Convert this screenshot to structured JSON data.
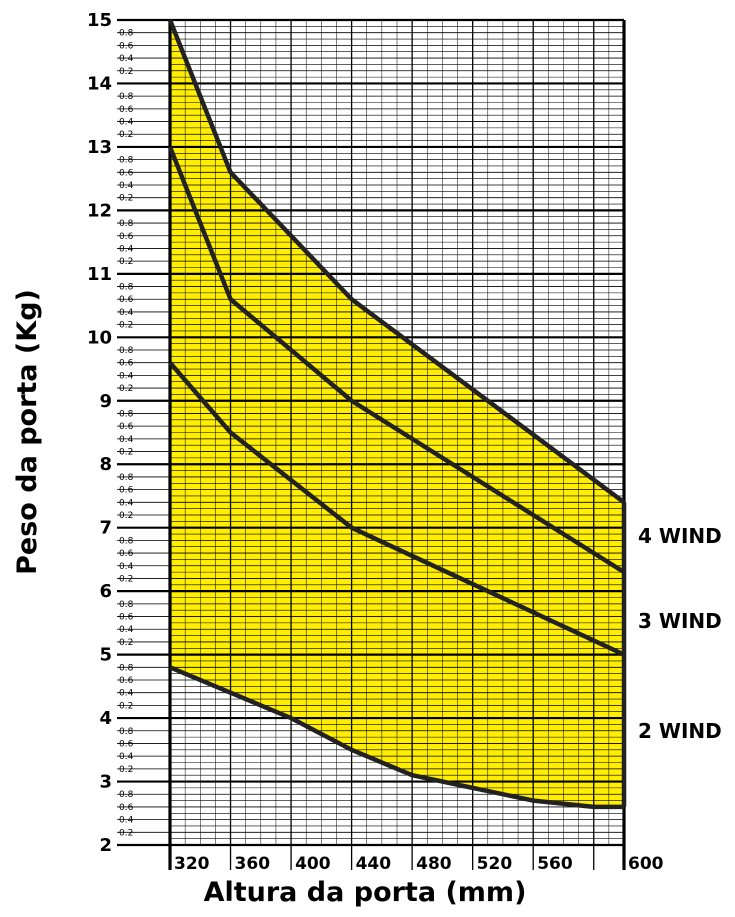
{
  "chart_data": {
    "type": "area",
    "xlabel": "Altura da porta (mm)",
    "ylabel": "Peso da porta (Kg)",
    "xlim": [
      300,
      600
    ],
    "ylim": [
      2,
      15
    ],
    "x_ticks": [
      "320",
      "360",
      "400",
      "440",
      "480",
      "520",
      "560",
      "600"
    ],
    "y_major_ticks": [
      "2",
      "3",
      "4",
      "5",
      "6",
      "7",
      "8",
      "9",
      "10",
      "11",
      "12",
      "13",
      "14",
      "15"
    ],
    "y_minor_ticks": [
      "0.2",
      "0.4",
      "0.6",
      "0.8"
    ],
    "fill_color": "#ffee00",
    "line_color": "#222222",
    "series": [
      {
        "name": "4 WIND",
        "x": [
          300,
          340,
          420,
          600
        ],
        "y": [
          15.0,
          12.6,
          10.6,
          7.4
        ]
      },
      {
        "name": "3 WIND",
        "x": [
          300,
          340,
          420,
          600
        ],
        "y": [
          13.0,
          10.6,
          9.0,
          6.3
        ]
      },
      {
        "name": "2 WIND",
        "x": [
          300,
          340,
          420,
          600
        ],
        "y": [
          9.6,
          8.5,
          7.0,
          5.0
        ]
      }
    ],
    "lower_bound": {
      "x": [
        300,
        340,
        380,
        420,
        460,
        500,
        540,
        580,
        600
      ],
      "y": [
        4.8,
        4.4,
        4.0,
        3.5,
        3.1,
        2.9,
        2.7,
        2.6,
        2.6
      ]
    }
  }
}
